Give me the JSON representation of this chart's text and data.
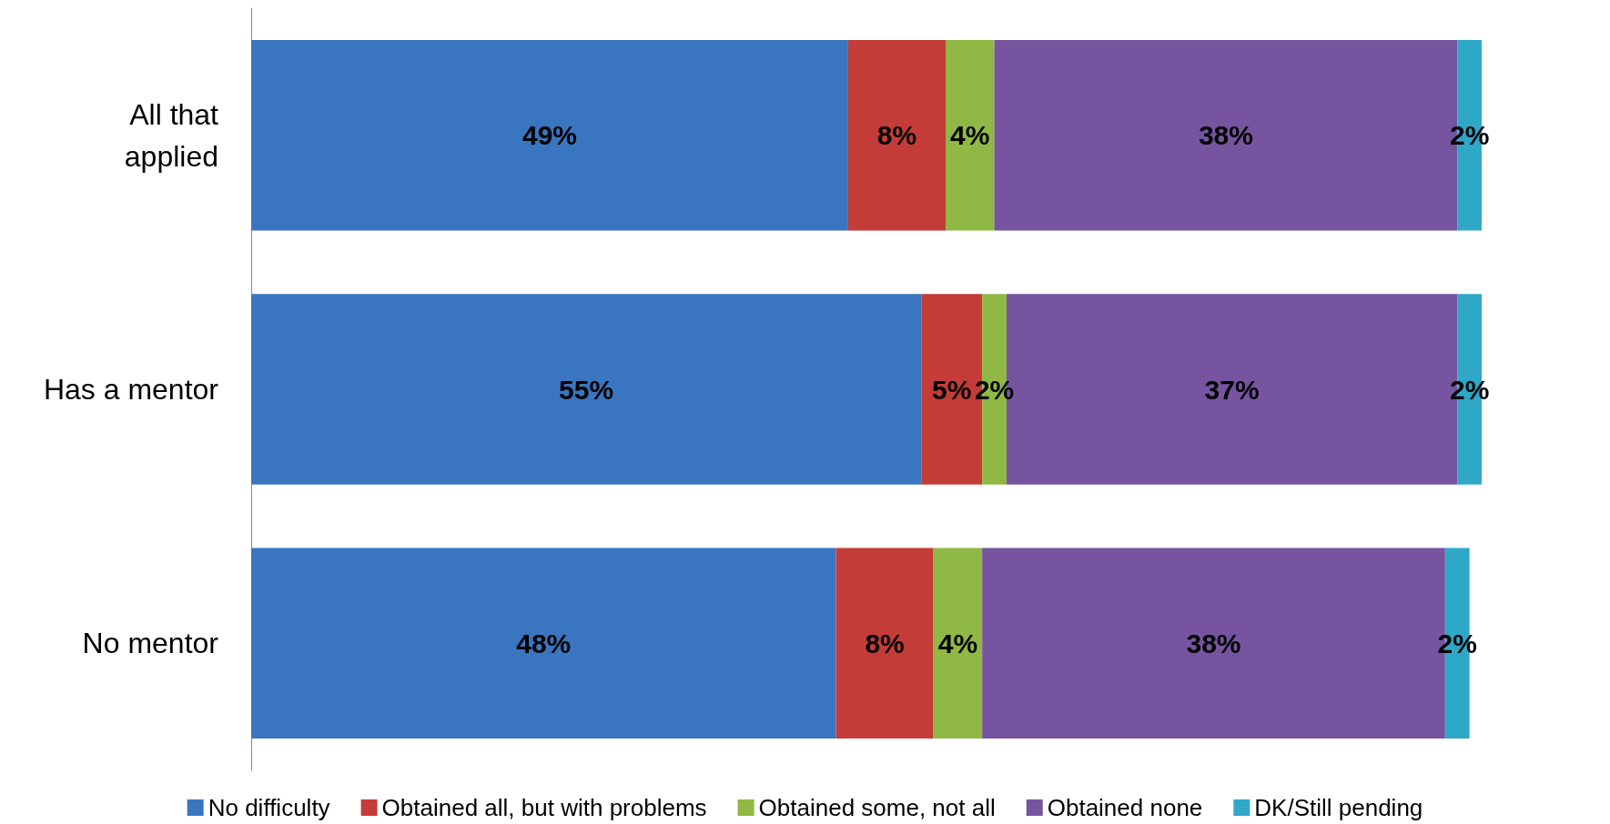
{
  "chart_data": {
    "type": "bar",
    "orientation": "horizontal",
    "stacked": true,
    "categories": [
      "All that\napplied",
      "Has a mentor",
      "No mentor"
    ],
    "series": [
      {
        "name": "No difficulty",
        "color": "#3a75c0",
        "values": [
          49,
          55,
          48
        ],
        "value_labels": [
          "49%",
          "55%",
          "48%"
        ]
      },
      {
        "name": "Obtained all, but with problems",
        "color": "#c43c38",
        "values": [
          8,
          5,
          8
        ],
        "value_labels": [
          "8%",
          "5%",
          "8%"
        ]
      },
      {
        "name": "Obtained some, not all",
        "color": "#8fb844",
        "values": [
          4,
          2,
          4
        ],
        "value_labels": [
          "4%",
          "2%",
          "4%"
        ]
      },
      {
        "name": "Obtained none",
        "color": "#7654a0",
        "values": [
          38,
          37,
          38
        ],
        "value_labels": [
          "38%",
          "37%",
          "38%"
        ]
      },
      {
        "name": "DK/Still pending",
        "color": "#2fa8c8",
        "values": [
          2,
          2,
          2
        ],
        "value_labels": [
          "2%",
          "2%",
          "2%"
        ]
      }
    ],
    "legend": "bottom"
  }
}
